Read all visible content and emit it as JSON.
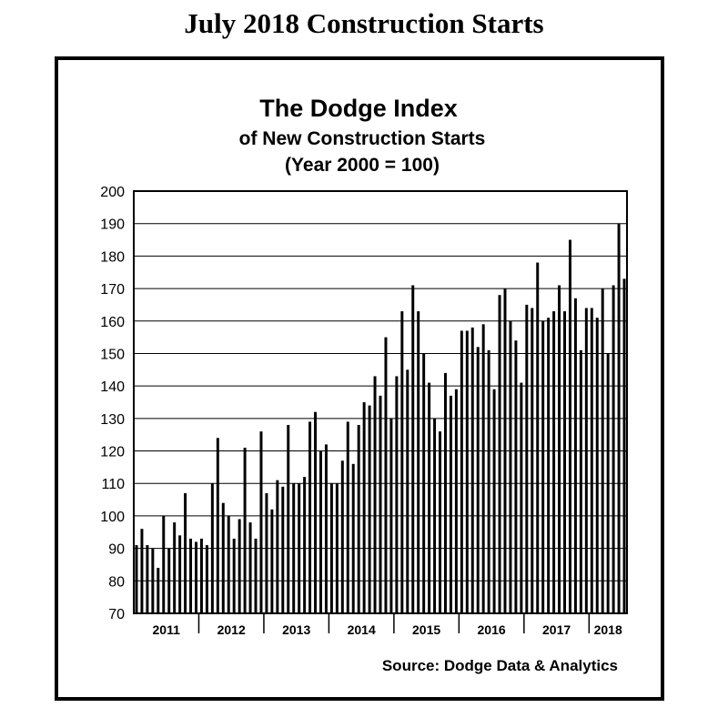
{
  "page_title": "July 2018 Construction Starts",
  "chart_data": {
    "type": "bar",
    "title": "The Dodge Index",
    "subtitle_lines": [
      "of New Construction Starts",
      "(Year 2000 = 100)"
    ],
    "source": "Source:  Dodge Data & Analytics",
    "ylim": [
      70,
      200
    ],
    "yticks": [
      70,
      80,
      90,
      100,
      110,
      120,
      130,
      140,
      150,
      160,
      170,
      180,
      190,
      200
    ],
    "x_labels": [
      {
        "label": "2011",
        "months": 12
      },
      {
        "label": "2012",
        "months": 12
      },
      {
        "label": "2013",
        "months": 12
      },
      {
        "label": "2014",
        "months": 12
      },
      {
        "label": "2015",
        "months": 12
      },
      {
        "label": "2016",
        "months": 12
      },
      {
        "label": "2017",
        "months": 12
      },
      {
        "label": "2018",
        "months": 7
      }
    ],
    "grid": true,
    "bar_color": "#000000",
    "values": [
      91,
      96,
      91,
      90,
      84,
      100,
      90,
      98,
      94,
      107,
      93,
      92,
      93,
      91,
      110,
      124,
      104,
      100,
      93,
      99,
      121,
      98,
      93,
      126,
      107,
      102,
      111,
      109,
      128,
      110,
      110,
      112,
      129,
      132,
      120,
      122,
      110,
      110,
      117,
      129,
      116,
      128,
      135,
      134,
      143,
      137,
      155,
      130,
      143,
      163,
      145,
      171,
      163,
      150,
      141,
      130,
      126,
      144,
      137,
      139,
      157,
      157,
      158,
      152,
      159,
      151,
      139,
      168,
      170,
      160,
      154,
      141,
      165,
      164,
      178,
      160,
      161,
      163,
      171,
      163,
      185,
      167,
      151,
      164,
      164,
      161,
      170,
      150,
      171,
      190,
      173
    ]
  }
}
